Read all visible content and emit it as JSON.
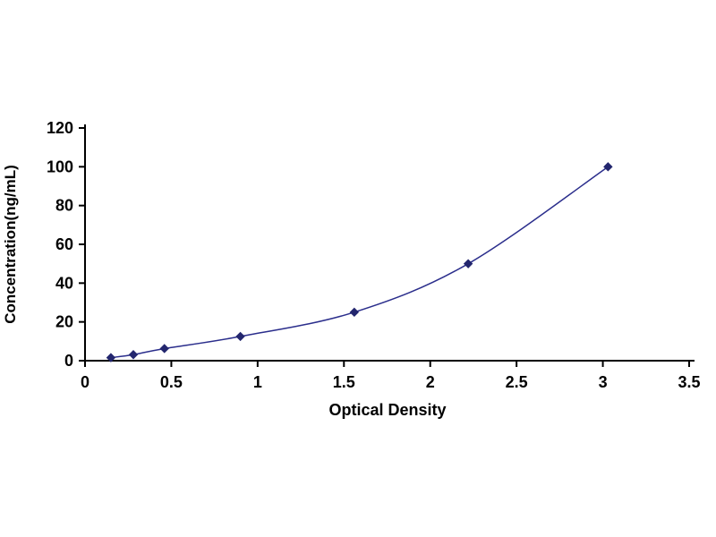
{
  "chart_data": {
    "type": "line",
    "title": "",
    "xlabel": "Optical Density",
    "ylabel": "Concentration(ng/mL)",
    "x": [
      0.15,
      0.28,
      0.46,
      0.9,
      1.56,
      2.22,
      3.03
    ],
    "y": [
      1.56,
      3.12,
      6.25,
      12.5,
      25,
      50,
      100
    ],
    "xlim": [
      0,
      3.5
    ],
    "ylim": [
      0,
      120
    ],
    "x_ticks": [
      0,
      0.5,
      1,
      1.5,
      2,
      2.5,
      3,
      3.5
    ],
    "y_ticks": [
      0,
      20,
      40,
      60,
      80,
      100,
      120
    ],
    "x_tick_labels": [
      "0",
      "0.5",
      "1",
      "1.5",
      "2",
      "2.5",
      "3",
      "3.5"
    ],
    "y_tick_labels": [
      "0",
      "20",
      "40",
      "60",
      "80",
      "100",
      "120"
    ],
    "line_color": "#2b2e8c",
    "marker_color": "#23266e",
    "axis_color": "#000000",
    "text_color": "#000000",
    "marker": "diamond",
    "grid": false,
    "legend": "none",
    "background": "#ffffff"
  }
}
